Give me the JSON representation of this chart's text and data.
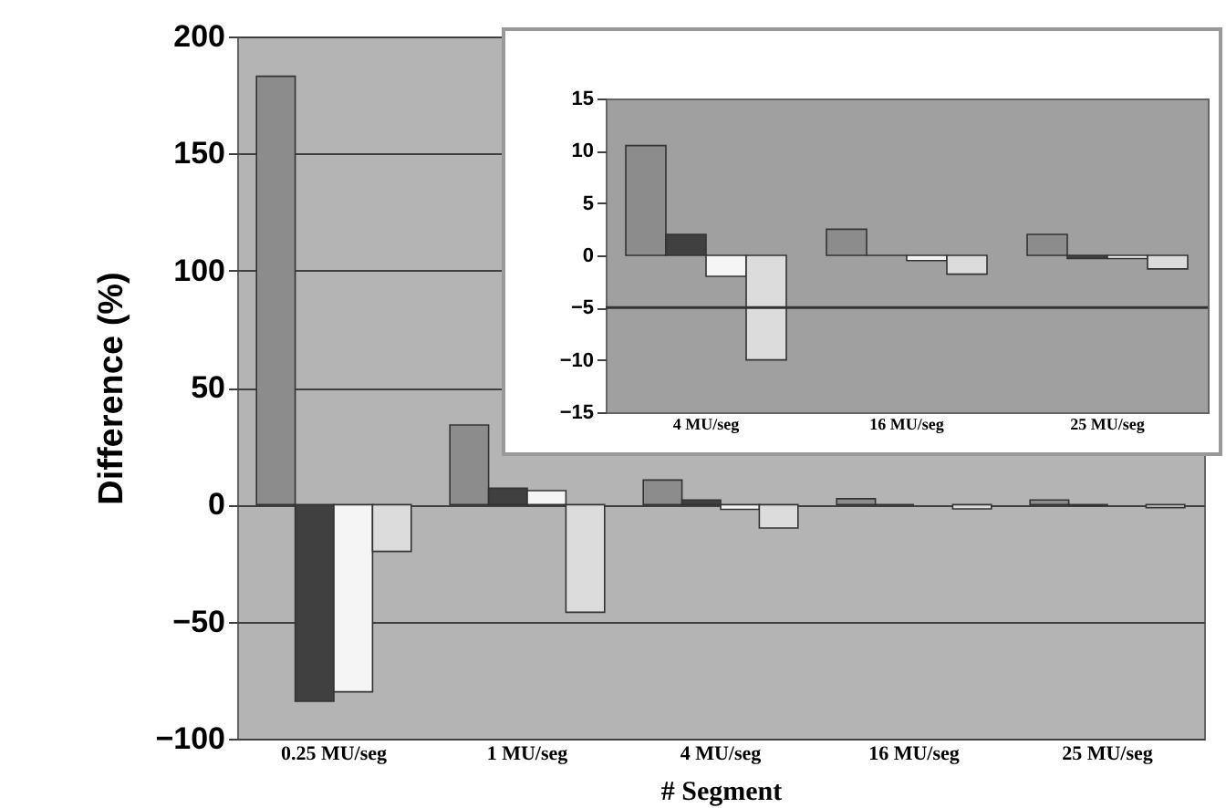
{
  "chart_data": [
    {
      "type": "bar",
      "xlabel": "# Segment",
      "ylabel": "Difference (%)",
      "categories": [
        "0.25 MU/seg",
        "1 MU/seg",
        "4 MU/seg",
        "16 MU/seg",
        "25 MU/seg"
      ],
      "series": [
        {
          "color": "#8c8c8c",
          "values": [
            183,
            34,
            10.5,
            2.5,
            2
          ]
        },
        {
          "color": "#404040",
          "values": [
            -84,
            7,
            2,
            0,
            -0.3
          ]
        },
        {
          "color": "#f5f5f5",
          "values": [
            -80,
            6,
            -2,
            null,
            null
          ]
        },
        {
          "color": "#dcdcdc",
          "values": [
            -20,
            -46,
            -10,
            -1.8,
            -1.3
          ]
        }
      ],
      "ylim": [
        -100,
        200
      ],
      "yticks": [
        -100,
        -50,
        0,
        50,
        100,
        150,
        200
      ],
      "grid": "y",
      "legend": false
    },
    {
      "type": "bar",
      "categories": [
        "4 MU/seg",
        "16 MU/seg",
        "25 MU/seg"
      ],
      "series": [
        {
          "color": "#8c8c8c",
          "values": [
            10.5,
            2.5,
            2
          ]
        },
        {
          "color": "#404040",
          "values": [
            2,
            0,
            -0.3
          ]
        },
        {
          "color": "#f5f5f5",
          "values": [
            -2,
            -0.5,
            -0.3
          ]
        },
        {
          "color": "#dcdcdc",
          "values": [
            -10,
            -1.8,
            -1.3
          ]
        }
      ],
      "ylim": [
        -15,
        15
      ],
      "yticks": [
        -15,
        -10,
        -5,
        0,
        5,
        10,
        15
      ],
      "ref_lines": [
        {
          "axis": "y",
          "value": -5
        }
      ],
      "legend": false
    }
  ]
}
